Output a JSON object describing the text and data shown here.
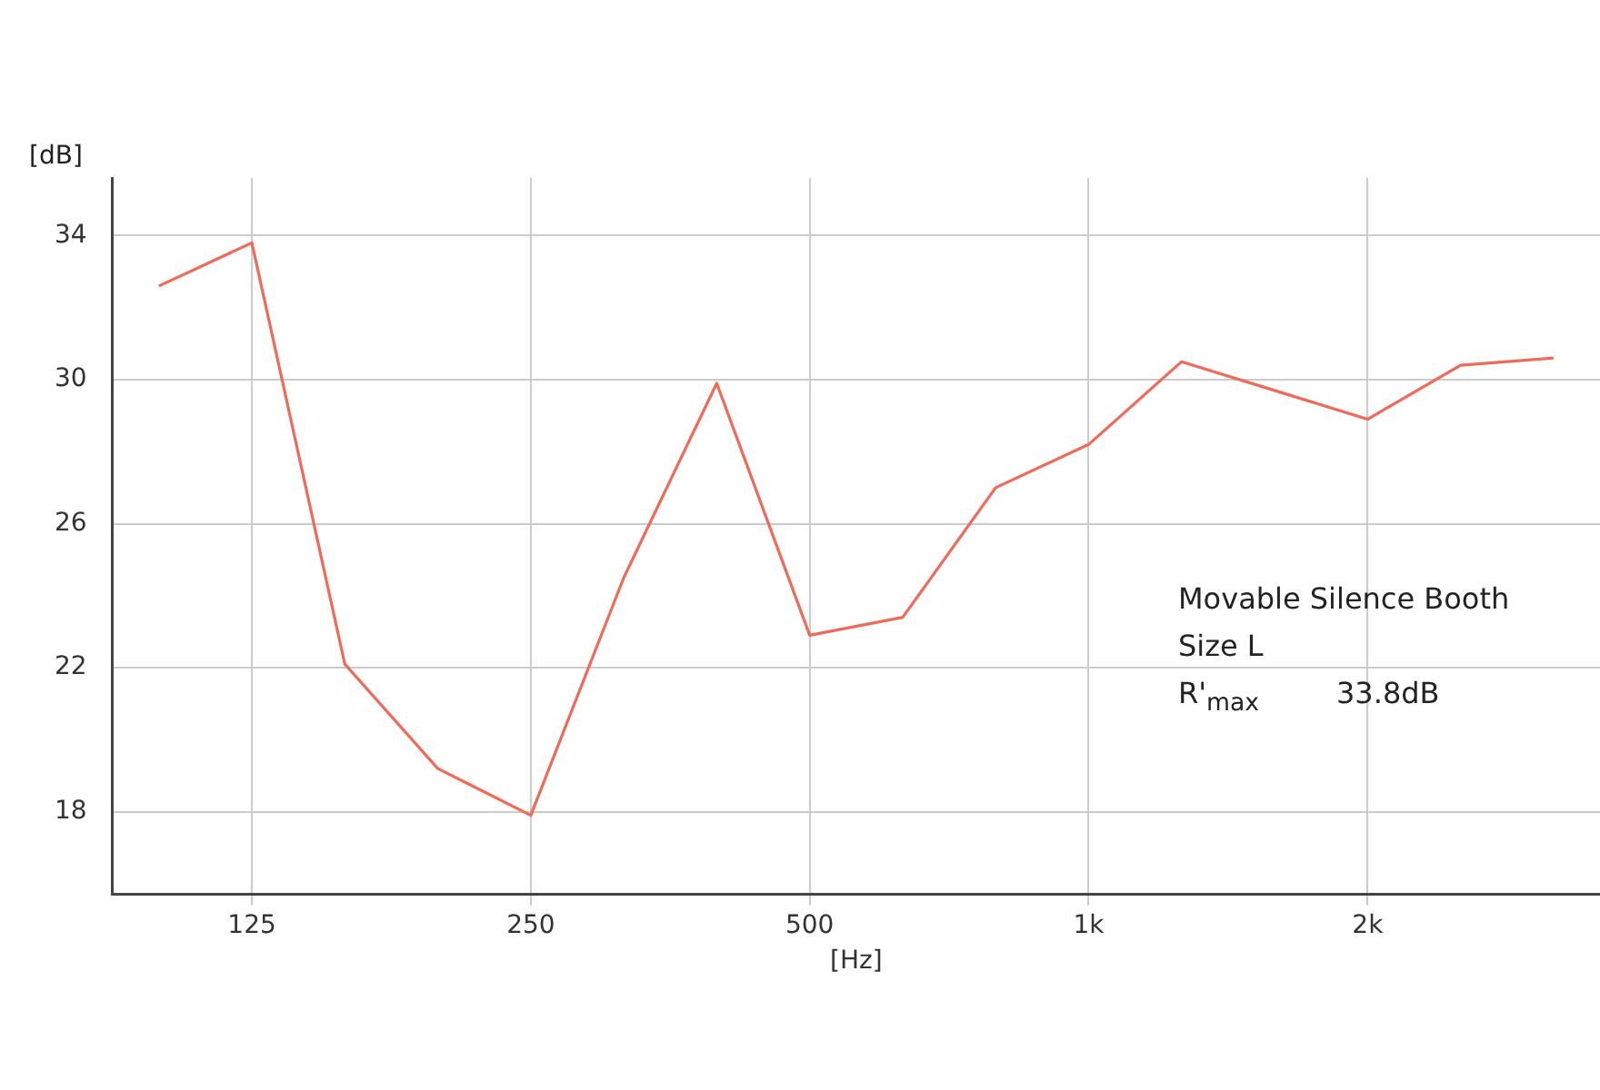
{
  "chart_data": {
    "type": "line",
    "xlabel": "[Hz]",
    "ylabel": "[dB]",
    "categories": [
      null,
      "125",
      null,
      null,
      "250",
      null,
      null,
      "500",
      null,
      null,
      "1k",
      null,
      null,
      "2k",
      null,
      null
    ],
    "series": [
      {
        "color": "#f06a5a",
        "values": [
          32.6,
          33.8,
          22.1,
          19.2,
          17.9,
          24.5,
          29.9,
          22.9,
          23.4,
          27.0,
          28.2,
          30.5,
          29.7,
          28.9,
          30.4,
          30.6
        ]
      }
    ],
    "ylim": [
      15.7,
      35.6
    ],
    "yticks": [
      18,
      22,
      26,
      30,
      34
    ],
    "grid": true,
    "legend": false,
    "marker": "none",
    "line_style": "solid",
    "annotations": [
      "Movable Silence Booth",
      "Size L",
      "R'$_{max}$",
      "33.8dB"
    ]
  }
}
